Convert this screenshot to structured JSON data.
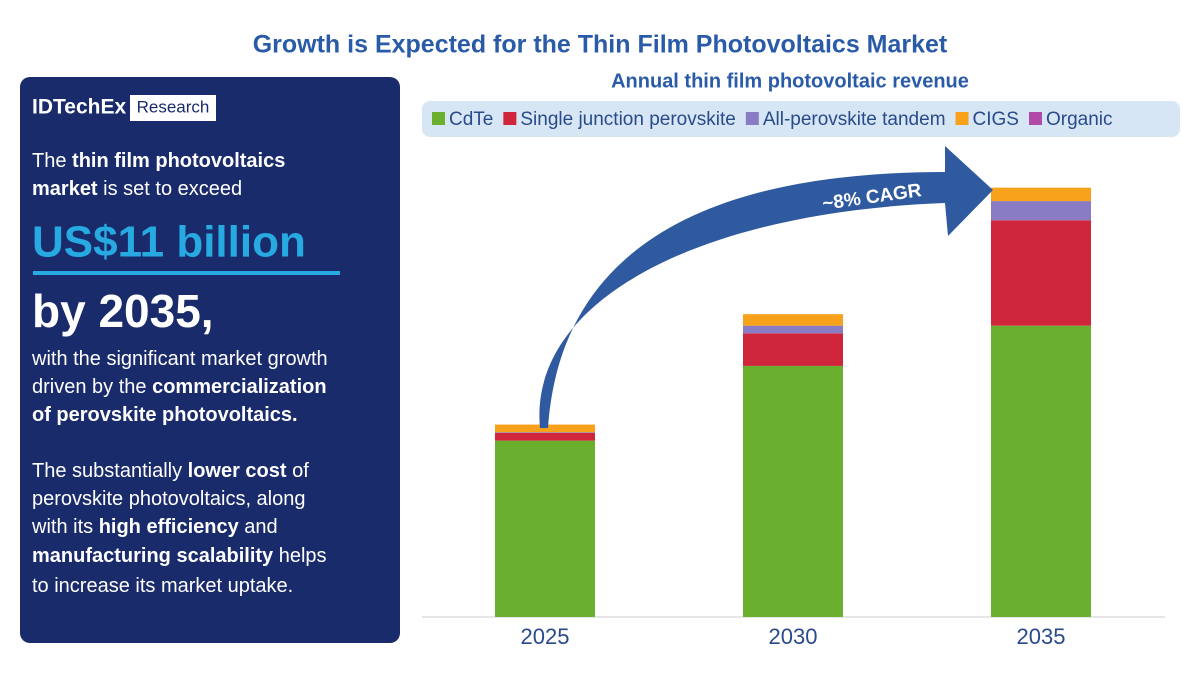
{
  "panel": {
    "logo": "IDTechEx",
    "logo_tag": "Research",
    "intro": [
      [
        "The ",
        "thin film photovoltaics"
      ],
      [
        "market",
        " is set to exceed"
      ]
    ],
    "headline": "US$11 billion",
    "year_line": "by 2035,",
    "growth": [
      [
        "with the significant market growth"
      ],
      [
        "driven by the ",
        "commercialization"
      ],
      [
        "of perovskite photovoltaics."
      ]
    ],
    "cost": [
      [
        "The substantially ",
        "lower cost",
        " of"
      ],
      [
        "perovskite photovoltaics, along"
      ],
      [
        "with its ",
        "high efficiency",
        " and"
      ],
      [
        "manufacturing scalability",
        " helps"
      ],
      [
        "to increase its market uptake."
      ]
    ]
  },
  "chart_data": {
    "type": "stacked_bar",
    "title": "Growth is Expected for the Thin Film Photovoltaics Market",
    "subtitle": "Annual thin film photovoltaic revenue",
    "annotation": "~8% CAGR",
    "categories": [
      "2025",
      "2030",
      "2035"
    ],
    "series": [
      {
        "name": "CdTe",
        "color": "#6ab02e",
        "values": [
          4.6,
          6.55,
          7.6
        ]
      },
      {
        "name": "Single junction perovskite",
        "color": "#d0263c",
        "values": [
          0.2,
          0.85,
          2.75
        ]
      },
      {
        "name": "All-perovskite tandem",
        "color": "#8a7cc4",
        "values": [
          0.02,
          0.2,
          0.5
        ]
      },
      {
        "name": "CIGS",
        "color": "#f8a21b",
        "values": [
          0.2,
          0.3,
          0.35
        ]
      },
      {
        "name": "Organic",
        "color": "#b04aa6",
        "values": [
          0,
          0,
          0
        ]
      }
    ],
    "ylim": [
      0,
      12
    ]
  }
}
